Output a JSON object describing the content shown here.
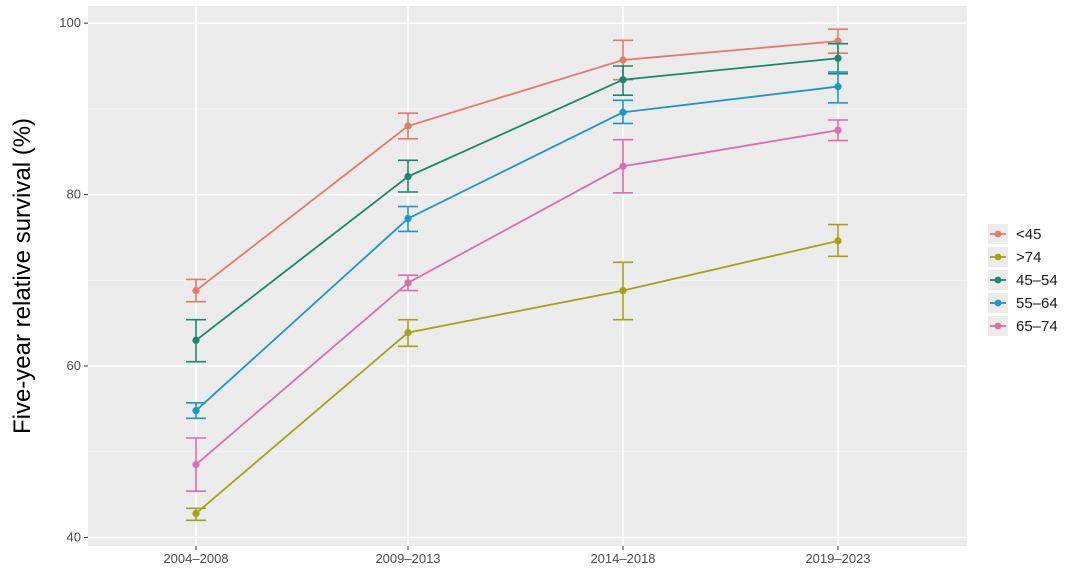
{
  "chart_data": {
    "type": "line",
    "title": "",
    "xlabel": "",
    "ylabel": "Five-year relative survival (%)",
    "categories": [
      "2004–2008",
      "2009–2013",
      "2014–2018",
      "2019–2023"
    ],
    "ylim": [
      39,
      102
    ],
    "yticks": [
      40,
      60,
      80,
      100
    ],
    "ytick_labels": [
      "40",
      "60",
      "80",
      "100"
    ],
    "grid": true,
    "legend_position": "right",
    "series": [
      {
        "name": "<45",
        "color": "#E07B6D",
        "values": [
          68.8,
          88.0,
          95.7,
          97.9
        ],
        "lower": [
          67.5,
          86.5,
          93.4,
          96.5
        ],
        "upper": [
          70.1,
          89.5,
          98.0,
          99.3
        ]
      },
      {
        "name": ">74",
        "color": "#A3A31A",
        "values": [
          42.8,
          63.9,
          68.8,
          74.6
        ],
        "lower": [
          42.0,
          62.3,
          65.4,
          72.8
        ],
        "upper": [
          43.4,
          65.4,
          72.1,
          76.5
        ]
      },
      {
        "name": "45–54",
        "color": "#18876A",
        "values": [
          63.0,
          82.1,
          93.4,
          95.9
        ],
        "lower": [
          60.5,
          80.3,
          91.6,
          94.1
        ],
        "upper": [
          65.4,
          84.0,
          95.0,
          97.6
        ]
      },
      {
        "name": "55–64",
        "color": "#1E96C7",
        "values": [
          54.8,
          77.2,
          89.6,
          92.6
        ],
        "lower": [
          53.9,
          75.7,
          88.3,
          90.7
        ],
        "upper": [
          55.7,
          78.6,
          91.0,
          94.3
        ]
      },
      {
        "name": "65–74",
        "color": "#D96EAC",
        "values": [
          48.5,
          69.7,
          83.3,
          87.5
        ],
        "lower": [
          45.4,
          68.8,
          80.2,
          86.3
        ],
        "upper": [
          51.6,
          70.6,
          86.4,
          88.7
        ]
      }
    ]
  }
}
